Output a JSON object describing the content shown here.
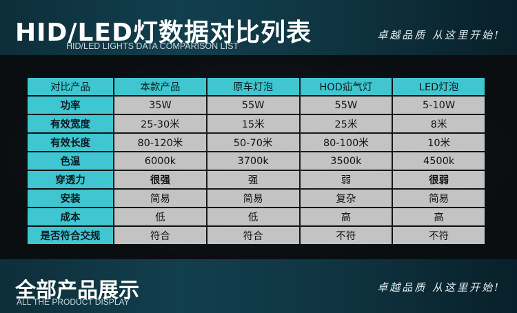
{
  "header": {
    "title": "HID/LED灯数据对比列表",
    "subtitle": "HID/LED LIGHTS DATA COMPARISON LIST",
    "slogan": "卓越品质 从这里开始!"
  },
  "table": {
    "columns": [
      "对比产品",
      "本款产品",
      "原车灯泡",
      "HOD疝气灯",
      "LED灯泡"
    ],
    "rows": [
      {
        "label": "功率",
        "values": [
          "35W",
          "55W",
          "55W",
          "5-10W"
        ]
      },
      {
        "label": "有效宽度",
        "values": [
          "25-30米",
          "15米",
          "25米",
          "8米"
        ]
      },
      {
        "label": "有效长度",
        "values": [
          "80-120米",
          "50-70米",
          "80-100米",
          "10米"
        ]
      },
      {
        "label": "色温",
        "values": [
          "6000k",
          "3700k",
          "3500k",
          "4500k"
        ]
      },
      {
        "label": "穿透力",
        "values": [
          "很强",
          "强",
          "弱",
          "很弱"
        ]
      },
      {
        "label": "安装",
        "values": [
          "简易",
          "简易",
          "复杂",
          "简易"
        ]
      },
      {
        "label": "成本",
        "values": [
          "低",
          "低",
          "高",
          "高"
        ]
      },
      {
        "label": "是否符合交规",
        "values": [
          "符合",
          "符合",
          "不符",
          "不符"
        ]
      }
    ]
  },
  "footer": {
    "title": "全部产品展示",
    "subtitle": "ALL THE PRODUCT DISPLAY",
    "slogan": "卓越品质 从这里开始!"
  }
}
